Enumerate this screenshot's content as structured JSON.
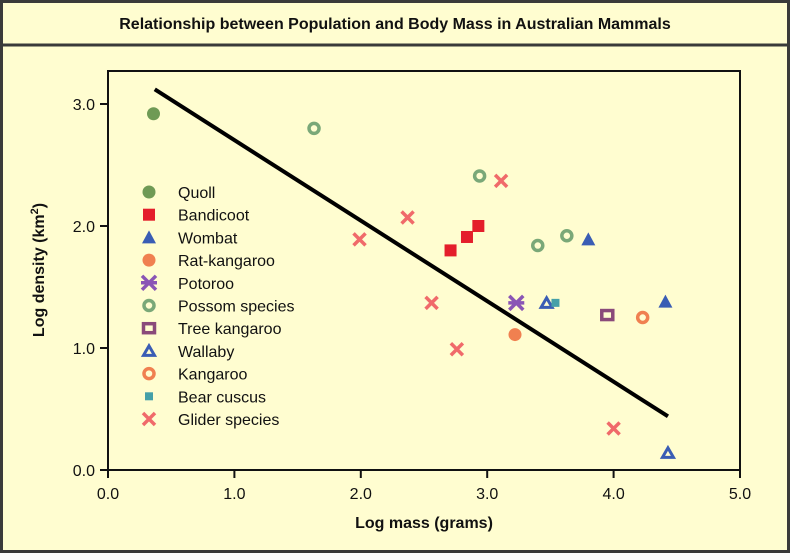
{
  "chart_data": {
    "type": "scatter",
    "title": "Relationship between Population and Body Mass in Australian Mammals",
    "xlabel": "Log mass (grams)",
    "ylabel_main": "Log density (km",
    "ylabel_sup": "2",
    "ylabel_close": ")",
    "xlim": [
      0,
      5
    ],
    "ylim": [
      0,
      3
    ],
    "x_ticks": [
      "0.0",
      "1.0",
      "2.0",
      "3.0",
      "4.0",
      "5.0"
    ],
    "y_ticks": [
      "0.0",
      "1.0",
      "2.0",
      "3.0"
    ],
    "grid": false,
    "legend_position": "left",
    "background_color": "#fffdd0",
    "series": [
      {
        "name": "Quoll",
        "marker": "circle-filled",
        "color": "#6f9a55",
        "points": [
          [
            0.36,
            2.92
          ]
        ]
      },
      {
        "name": "Bandicoot",
        "marker": "square-filled",
        "color": "#e41e2b",
        "points": [
          [
            2.71,
            1.8
          ],
          [
            2.84,
            1.91
          ],
          [
            2.93,
            2.0
          ]
        ]
      },
      {
        "name": "Wombat",
        "marker": "triangle-filled",
        "color": "#3a5db4",
        "points": [
          [
            3.8,
            1.89
          ],
          [
            4.41,
            1.38
          ]
        ]
      },
      {
        "name": "Rat-kangaroo",
        "marker": "circle-filled",
        "color": "#f08050",
        "points": [
          [
            3.22,
            1.11
          ]
        ]
      },
      {
        "name": "Potoroo",
        "marker": "asterisk",
        "color": "#8a55b5",
        "points": [
          [
            3.23,
            1.37
          ]
        ]
      },
      {
        "name": "Possom species",
        "marker": "circle-open",
        "color": "#7aa878",
        "points": [
          [
            1.63,
            2.8
          ],
          [
            2.94,
            2.41
          ],
          [
            3.4,
            1.84
          ],
          [
            3.63,
            1.92
          ]
        ]
      },
      {
        "name": "Tree kangaroo",
        "marker": "square-open",
        "color": "#8a4a7a",
        "points": [
          [
            3.95,
            1.27
          ]
        ]
      },
      {
        "name": "Wallaby",
        "marker": "triangle-open",
        "color": "#3a5db4",
        "points": [
          [
            3.47,
            1.37
          ],
          [
            4.43,
            0.14
          ]
        ]
      },
      {
        "name": "Kangaroo",
        "marker": "circle-open",
        "color": "#f08050",
        "points": [
          [
            4.23,
            1.25
          ]
        ]
      },
      {
        "name": "Bear cuscus",
        "marker": "square-small",
        "color": "#45a0a8",
        "points": [
          [
            3.54,
            1.37
          ]
        ]
      },
      {
        "name": "Glider species",
        "marker": "x",
        "color": "#f06a6a",
        "points": [
          [
            3.11,
            2.37
          ],
          [
            2.37,
            2.07
          ],
          [
            1.99,
            1.89
          ],
          [
            2.56,
            1.37
          ],
          [
            2.76,
            0.99
          ],
          [
            4.0,
            0.34
          ]
        ]
      }
    ],
    "trendline": {
      "x": [
        0.37,
        4.43
      ],
      "y": [
        3.12,
        0.44
      ],
      "color": "#000000"
    }
  }
}
